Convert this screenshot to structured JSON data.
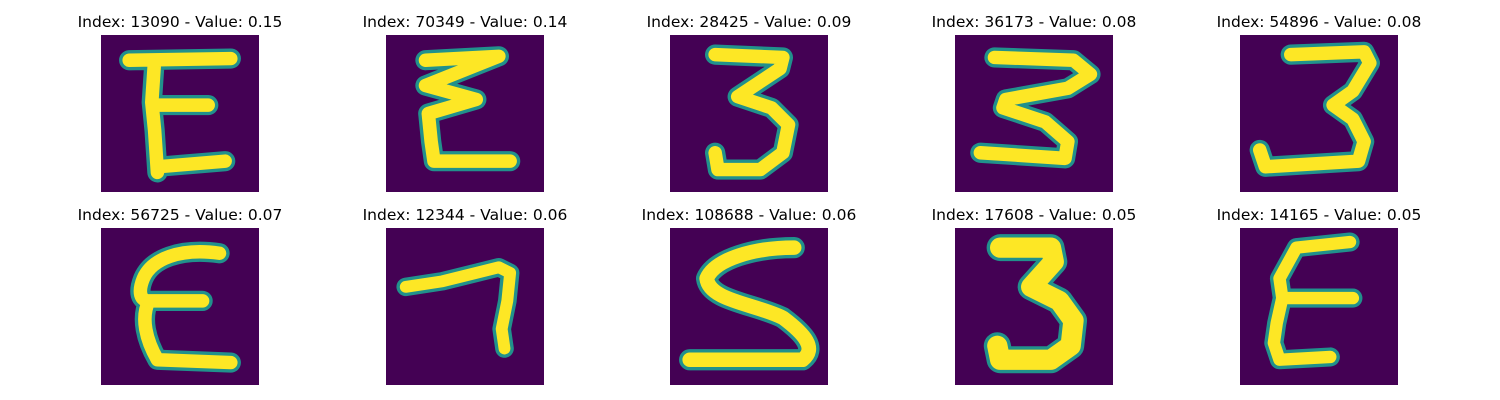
{
  "panels": [
    {
      "index": "13090",
      "value": "0.15",
      "title": "Index: 13090 - Value: 0.15",
      "glyph": "E-wide",
      "row": 0,
      "col": 0
    },
    {
      "index": "70349",
      "value": "0.14",
      "title": "Index: 70349 - Value: 0.14",
      "glyph": "E-zigzag",
      "row": 0,
      "col": 1
    },
    {
      "index": "28425",
      "value": "0.09",
      "title": "Index: 28425 - Value: 0.09",
      "glyph": "3-tall",
      "row": 0,
      "col": 2
    },
    {
      "index": "36173",
      "value": "0.08",
      "title": "Index: 36173 - Value: 0.08",
      "glyph": "3-slanted",
      "row": 0,
      "col": 3
    },
    {
      "index": "54896",
      "value": "0.08",
      "title": "Index: 54896 - Value: 0.08",
      "glyph": "3-open",
      "row": 0,
      "col": 4
    },
    {
      "index": "56725",
      "value": "0.07",
      "title": "Index: 56725 - Value: 0.07",
      "glyph": "E-round",
      "row": 1,
      "col": 0
    },
    {
      "index": "12344",
      "value": "0.06",
      "title": "Index: 12344 - Value: 0.06",
      "glyph": "7",
      "row": 1,
      "col": 1
    },
    {
      "index": "108688",
      "value": "0.06",
      "title": "Index: 108688 - Value: 0.06",
      "glyph": "5",
      "row": 1,
      "col": 2
    },
    {
      "index": "17608",
      "value": "0.05",
      "title": "Index: 17608 - Value: 0.05",
      "glyph": "3-bold",
      "row": 1,
      "col": 3
    },
    {
      "index": "14165",
      "value": "0.05",
      "title": "Index: 14165 - Value: 0.05",
      "glyph": "E-narrow",
      "row": 1,
      "col": 4
    }
  ],
  "colors": {
    "background": "#440154",
    "foreground": "#fde725",
    "edge": "#21918c"
  }
}
